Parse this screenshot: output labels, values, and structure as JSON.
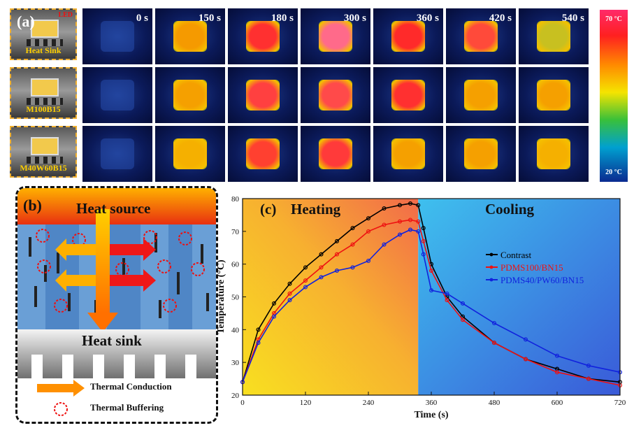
{
  "panel_a": {
    "label": "(a)",
    "photo_labels": [
      "Heat Sink",
      "M100B15",
      "M40W60B15"
    ],
    "led_label": "LED",
    "times": [
      "0 s",
      "150 s",
      "180 s",
      "300 s",
      "360 s",
      "420 s",
      "540 s"
    ],
    "colorbar": {
      "max_label": "70 °C",
      "min_label": "20 °C"
    },
    "hot_colors": [
      [
        "#1a3a9a",
        "#f59a00",
        "#ff3030",
        "#ff6a8a",
        "#ff2a2a",
        "#ff4a3a",
        "#c8c020"
      ],
      [
        "#1a3a9a",
        "#f5a000",
        "#ff4040",
        "#ff4a4a",
        "#ff3030",
        "#f5a000",
        "#f5a000"
      ],
      [
        "#1a3a9a",
        "#f5b000",
        "#ff4030",
        "#ff3a3a",
        "#f5a000",
        "#f5a000",
        "#f5b000"
      ]
    ]
  },
  "panel_b": {
    "label": "(b)",
    "heat_source": "Heat source",
    "heat_sink": "Heat sink",
    "legend": [
      "Thermal Conduction",
      "Thermal Buffering"
    ]
  },
  "chart_data": {
    "type": "line",
    "label": "(c)",
    "region_labels": [
      "Heating",
      "Cooling"
    ],
    "xlabel": "Time (s)",
    "ylabel": "Temperature (°C)",
    "xlim": [
      0,
      720
    ],
    "ylim": [
      20,
      80
    ],
    "xticks": [
      0,
      120,
      240,
      360,
      480,
      600,
      720
    ],
    "yticks": [
      20,
      30,
      40,
      50,
      60,
      70,
      80
    ],
    "phase_switch_x": 335,
    "colors": {
      "Contrast": "#000000",
      "PDMS100/BN15": "#ee1111",
      "PDMS40/PW60/BN15": "#1122dd"
    },
    "x": [
      0,
      30,
      60,
      90,
      120,
      150,
      180,
      210,
      240,
      270,
      300,
      320,
      335,
      345,
      360,
      390,
      420,
      480,
      540,
      600,
      660,
      720
    ],
    "series": [
      {
        "name": "Contrast",
        "values": [
          24,
          40,
          48,
          54,
          59,
          63,
          67,
          71,
          74,
          77,
          78,
          78.5,
          78,
          71,
          60,
          50,
          44,
          36,
          31,
          28,
          25,
          24
        ]
      },
      {
        "name": "PDMS100/BN15",
        "values": [
          24,
          37,
          45,
          51,
          55,
          59,
          63,
          66,
          70,
          72,
          73,
          73.5,
          73,
          67,
          58,
          49,
          43,
          36,
          31,
          27,
          25,
          23
        ]
      },
      {
        "name": "PDMS40/PW60/BN15",
        "values": [
          24,
          36,
          44,
          49,
          53,
          56,
          58,
          59,
          61,
          66,
          69,
          70.5,
          70,
          63,
          52,
          51,
          48,
          42,
          37,
          32,
          29,
          27
        ]
      }
    ]
  }
}
